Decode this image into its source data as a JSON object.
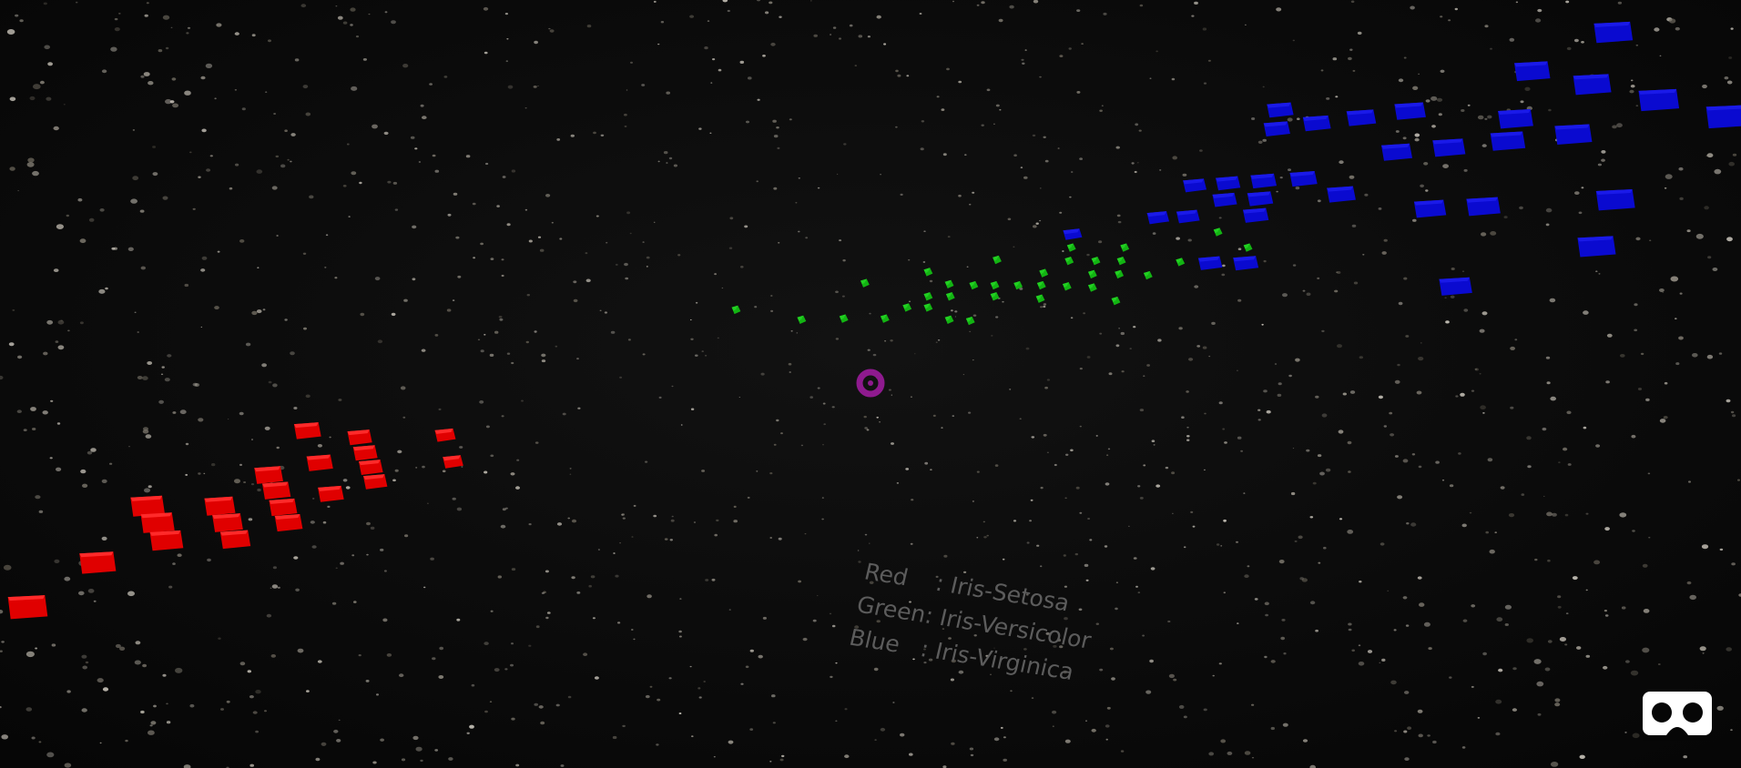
{
  "legend": {
    "lines": [
      "Red    : Iris-Setosa",
      "Green: Iris-Versicolor",
      "Blue   : Iris-Virginica"
    ]
  }
}
